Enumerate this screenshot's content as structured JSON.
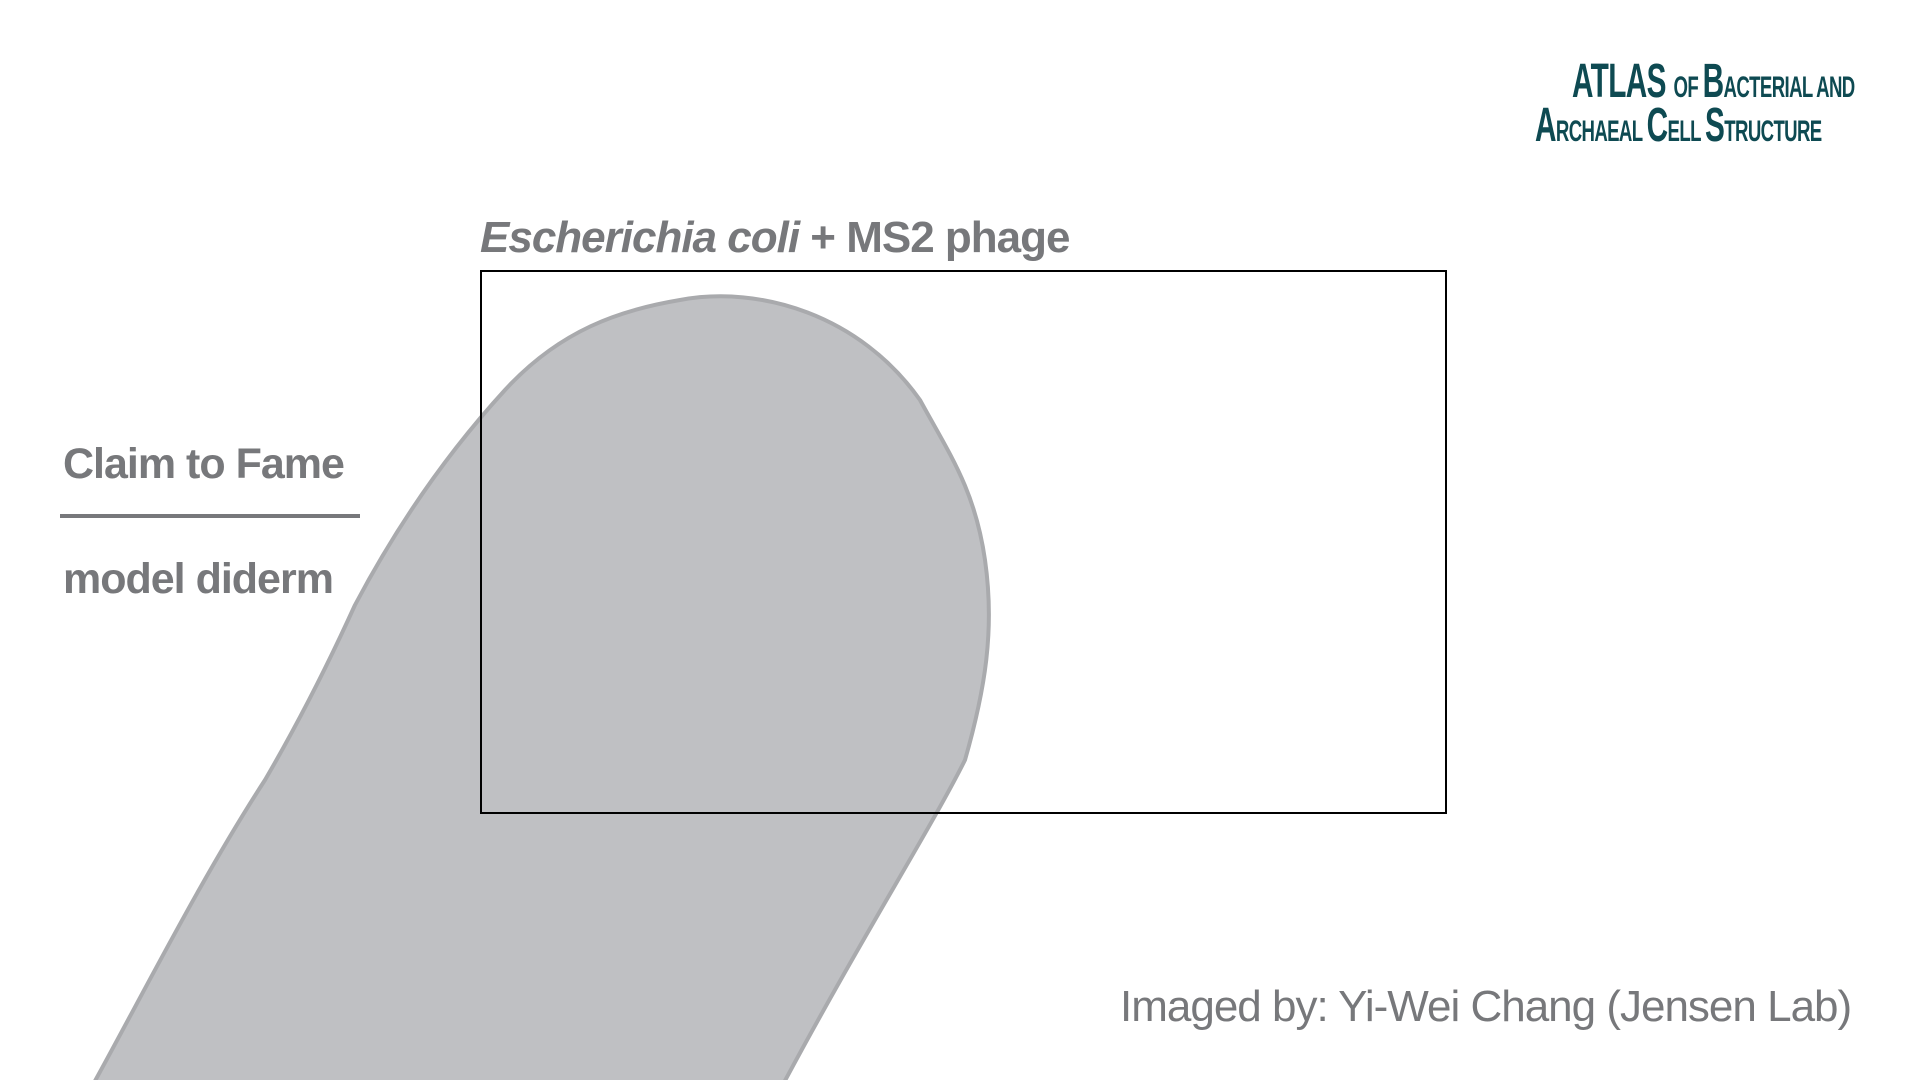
{
  "logo": {
    "line1_big": "A",
    "line1_rest": "TLAS ",
    "line1_of": "OF ",
    "line1_b": "B",
    "line1_acterial": "ACTERIAL ",
    "line1_and": "AND",
    "line2_a": "A",
    "line2_rchaeal": "RCHAEAL ",
    "line2_c": "C",
    "line2_ell": "ELL ",
    "line2_s": "S",
    "line2_tructure": "TRUCTURE"
  },
  "title": {
    "species": "Escherichia coli",
    "rest": " + MS2 phage"
  },
  "claim_to_fame": {
    "heading": "Claim to Fame",
    "value": "model diderm"
  },
  "credit": "Imaged by: Yi-Wei Chang (Jensen Lab)",
  "colors": {
    "text_gray": "#77787b",
    "logo_teal": "#0e4a52",
    "cell_fill": "#bfc0c3",
    "cell_outline": "#a9aaad",
    "frame_stroke": "#000000"
  }
}
